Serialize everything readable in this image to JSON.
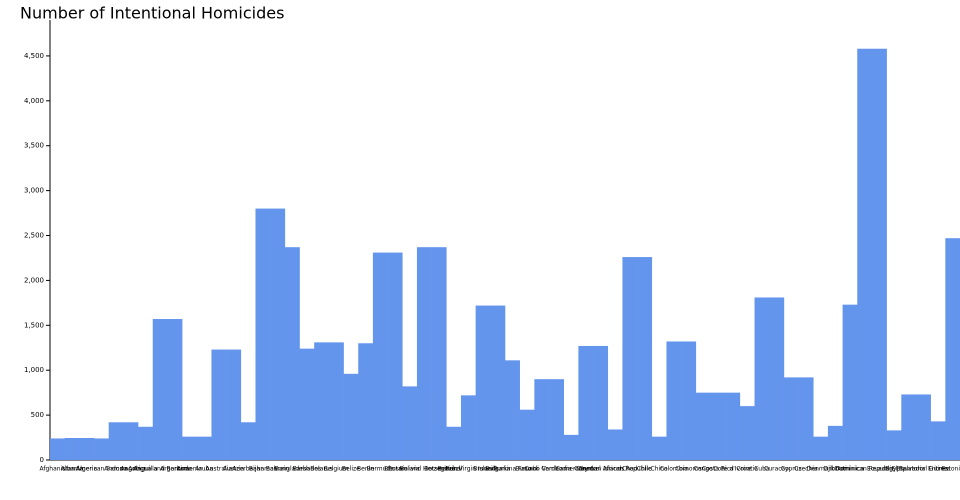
{
  "chart_data": {
    "type": "bar",
    "title": "Number of Intentional Homicides",
    "categories": [
      "Afghanistan",
      "Albania",
      "Algeria",
      "American Samoa",
      "Andorra",
      "Angola",
      "Anguilla",
      "Antigua and Barbuda",
      "Argentina",
      "Armenia",
      "Aruba",
      "Australia",
      "Austria",
      "Azerbaijan",
      "Bahamas",
      "Bahrain",
      "Bangladesh",
      "Barbados",
      "Belarus",
      "Belgium",
      "Belize",
      "Benin",
      "Bermuda",
      "Bhutan",
      "Bolivia",
      "Bosnia and Herzegovina",
      "Botswana",
      "Brazil",
      "British Virgin Islands",
      "Brunei",
      "Bulgaria",
      "Burkina Faso",
      "Burundi",
      "Cabo Verde",
      "Cambodia",
      "Cameroon",
      "Canada",
      "Cayman Islands",
      "Central African Republic",
      "Chad",
      "Chile",
      "China",
      "Colombia",
      "Comoros",
      "Congo",
      "Costa Rica",
      "Cote d'Ivoire",
      "Croatia",
      "Cuba",
      "Curacao",
      "Cyprus",
      "Czechia",
      "Denmark",
      "Djibouti",
      "Dominica",
      "Dominican Republic",
      "Ecuador",
      "Egypt",
      "El Salvador",
      "Equatorial Guinea",
      "Eritrea",
      "Estonia"
    ],
    "values": [
      240,
      245,
      245,
      240,
      420,
      420,
      370,
      1570,
      1570,
      260,
      260,
      1230,
      1230,
      420,
      2800,
      2800,
      2370,
      1240,
      1310,
      1310,
      960,
      1300,
      2310,
      2310,
      820,
      2370,
      2370,
      370,
      720,
      1720,
      1720,
      1110,
      560,
      900,
      900,
      280,
      1270,
      1270,
      340,
      2260,
      2260,
      260,
      1320,
      1320,
      750,
      750,
      750,
      600,
      1810,
      1810,
      920,
      920,
      260,
      380,
      1730,
      4580,
      4580,
      330,
      730,
      730,
      430,
      2470
    ],
    "color": "#6495ed",
    "ylim": [
      0,
      4900
    ],
    "yticks": [
      0,
      500,
      {
        "value": 1000,
        "label": "1,000"
      },
      {
        "value": 1500,
        "label": "1,500"
      },
      {
        "value": 2000,
        "label": "2,000"
      },
      {
        "value": 2500,
        "label": "2,500"
      },
      {
        "value": 3000,
        "label": "3,000"
      },
      {
        "value": 3500,
        "label": "3,500"
      },
      {
        "value": 4000,
        "label": "4,000"
      },
      {
        "value": 4500,
        "label": "4,500"
      }
    ]
  }
}
